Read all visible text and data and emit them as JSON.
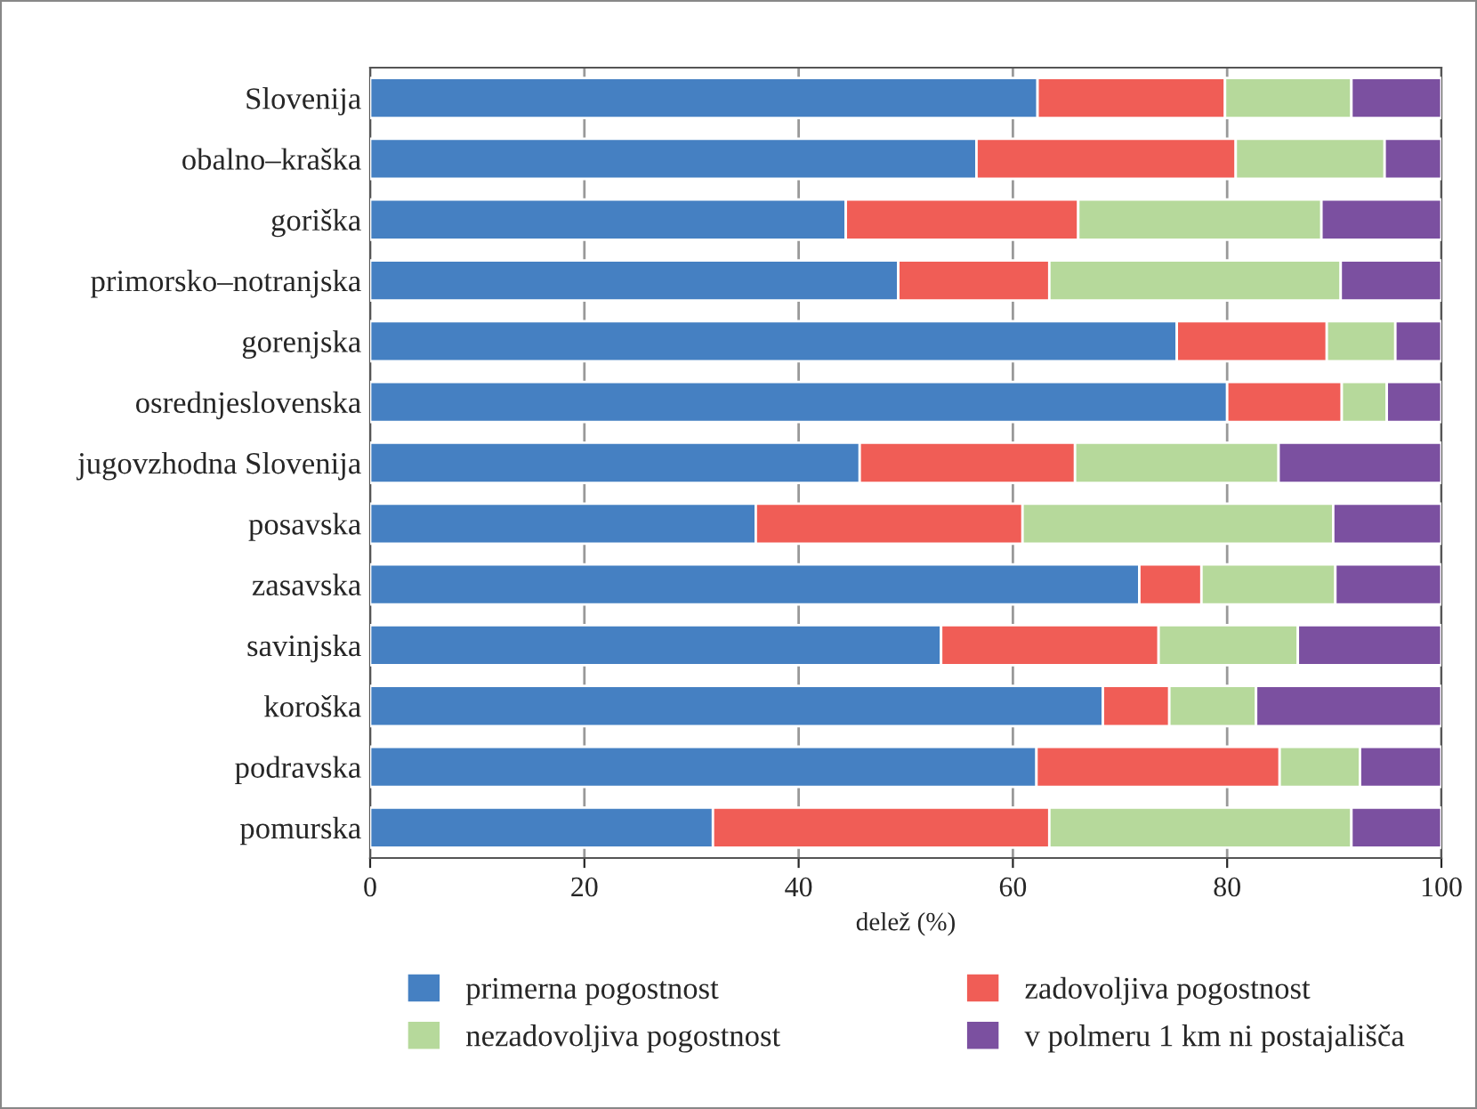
{
  "chart_data": {
    "type": "bar",
    "orientation": "horizontal",
    "stacked": true,
    "categories": [
      "Slovenija",
      "obalno–kraška",
      "goriška",
      "primorsko–notranjska",
      "gorenjska",
      "osrednjeslovenska",
      "jugovzhodna Slovenija",
      "posavska",
      "zasavska",
      "savinjska",
      "koroška",
      "podravska",
      "pomurska"
    ],
    "series": [
      {
        "name": "primerna pogostnost",
        "color": "#4580c2",
        "values": [
          62.3,
          56.6,
          44.4,
          49.3,
          75.3,
          80.0,
          45.7,
          36.0,
          71.8,
          53.3,
          68.4,
          62.2,
          32.0
        ]
      },
      {
        "name": "zadovoljiva pogostnost",
        "color": "#f05d56",
        "values": [
          17.5,
          24.2,
          21.7,
          14.1,
          14.0,
          10.7,
          20.1,
          24.9,
          5.8,
          20.3,
          6.2,
          22.7,
          31.4
        ]
      },
      {
        "name": "nezadovoljiva pogostnost",
        "color": "#b6d99b",
        "values": [
          11.8,
          13.9,
          22.7,
          27.2,
          6.4,
          4.2,
          19.0,
          29.0,
          12.5,
          13.0,
          8.1,
          7.5,
          28.2
        ]
      },
      {
        "name": "v polmeru 1 km ni postajališča",
        "color": "#7b50a0",
        "values": [
          8.4,
          5.3,
          11.2,
          9.4,
          4.3,
          5.1,
          15.2,
          10.1,
          9.9,
          13.4,
          17.3,
          7.6,
          8.4
        ]
      }
    ],
    "xlabel": "delež (%)",
    "xlim": [
      0,
      100
    ],
    "xticks": [
      0,
      20,
      40,
      60,
      80,
      100
    ],
    "grid": "x",
    "legend": "bottom"
  }
}
